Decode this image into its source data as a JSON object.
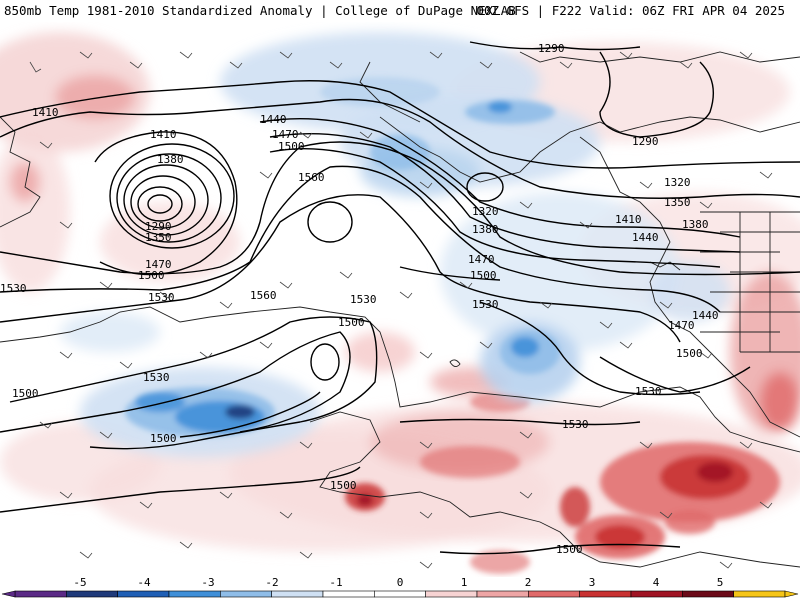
{
  "header": {
    "left_title": "850mb Temp 1981-2010 Standardized Anomaly | College of DuPage NEXLAB",
    "right_title": "00Z GFS | F222 Valid: 06Z FRI APR 04 2025"
  },
  "contour_labels": [
    {
      "text": "1410"
    },
    {
      "text": "1410"
    },
    {
      "text": "1380"
    },
    {
      "text": "1290"
    },
    {
      "text": "1350"
    },
    {
      "text": "1470"
    },
    {
      "text": "1500"
    },
    {
      "text": "1530"
    },
    {
      "text": "1440"
    },
    {
      "text": "1470"
    },
    {
      "text": "1500"
    },
    {
      "text": "1560"
    },
    {
      "text": "1560"
    },
    {
      "text": "1530"
    },
    {
      "text": "1500"
    },
    {
      "text": "1530"
    },
    {
      "text": "1500"
    },
    {
      "text": "1500"
    },
    {
      "text": "1530"
    },
    {
      "text": "1500"
    },
    {
      "text": "1500"
    },
    {
      "text": "1290"
    },
    {
      "text": "1290"
    },
    {
      "text": "1320"
    },
    {
      "text": "1320"
    },
    {
      "text": "1350"
    },
    {
      "text": "1380"
    },
    {
      "text": "1410"
    },
    {
      "text": "1440"
    },
    {
      "text": "1380"
    },
    {
      "text": "1470"
    },
    {
      "text": "1500"
    },
    {
      "text": "1530"
    },
    {
      "text": "1440"
    },
    {
      "text": "1470"
    },
    {
      "text": "1500"
    },
    {
      "text": "1530"
    },
    {
      "text": "1530"
    }
  ],
  "colorbar": {
    "ticks": [
      "-5",
      "-4",
      "-3",
      "-2",
      "-1",
      "0",
      "1",
      "2",
      "3",
      "4",
      "5"
    ],
    "colors": [
      "#5b2a86",
      "#1f3a7a",
      "#1f5fb5",
      "#3f8fd8",
      "#8fbde8",
      "#cfe0f3",
      "#ffffff",
      "#ffffff",
      "#f7d3d3",
      "#eea5a5",
      "#e06a6a",
      "#c93232",
      "#a01424",
      "#6b0a18",
      "#f5c518"
    ]
  }
}
